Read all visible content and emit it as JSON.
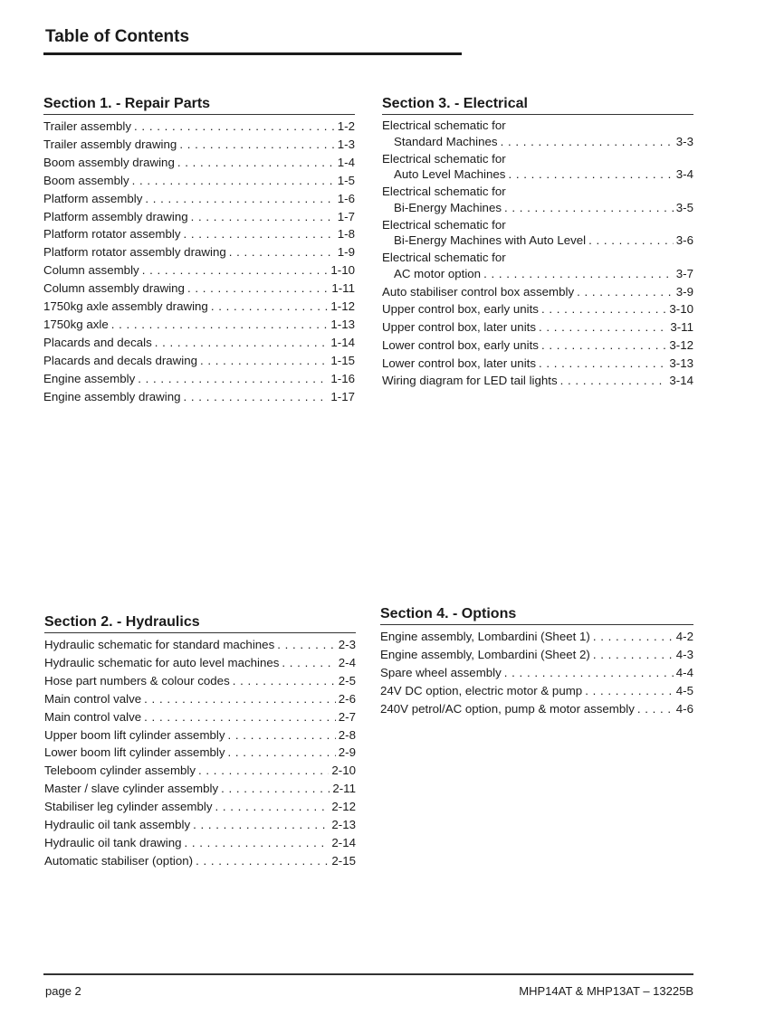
{
  "title": "Table of Contents",
  "sections": {
    "s1": {
      "title": "Section 1. - Repair Parts",
      "entries": [
        {
          "label": "Trailer assembly",
          "page": "1-2"
        },
        {
          "label": "Trailer assembly drawing",
          "page": "1-3"
        },
        {
          "label": "Boom assembly drawing",
          "page": "1-4"
        },
        {
          "label": "Boom assembly",
          "page": "1-5"
        },
        {
          "label": "Platform assembly",
          "page": "1-6"
        },
        {
          "label": "Platform assembly drawing",
          "page": "1-7"
        },
        {
          "label": "Platform rotator assembly",
          "page": "1-8"
        },
        {
          "label": "Platform rotator assembly drawing",
          "page": "1-9"
        },
        {
          "label": "Column assembly",
          "page": "1-10"
        },
        {
          "label": "Column assembly drawing",
          "page": "1-11"
        },
        {
          "label": "1750kg axle assembly drawing",
          "page": "1-12"
        },
        {
          "label": "1750kg axle",
          "page": "1-13"
        },
        {
          "label": "Placards and decals",
          "page": "1-14"
        },
        {
          "label": "Placards and decals drawing",
          "page": "1-15"
        },
        {
          "label": "Engine assembly",
          "page": "1-16"
        },
        {
          "label": "Engine assembly drawing",
          "page": "1-17"
        }
      ]
    },
    "s2": {
      "title": "Section 2. - Hydraulics",
      "entries": [
        {
          "label": "Hydraulic schematic for standard machines",
          "page": "2-3"
        },
        {
          "label": "Hydraulic schematic for auto level machines",
          "page": "2-4"
        },
        {
          "label": "Hose part numbers & colour codes",
          "page": "2-5"
        },
        {
          "label": "Main control valve",
          "page": "2-6"
        },
        {
          "label": "Main control valve",
          "page": "2-7"
        },
        {
          "label": "Upper boom lift cylinder assembly",
          "page": "2-8"
        },
        {
          "label": "Lower boom lift cylinder assembly",
          "page": "2-9"
        },
        {
          "label": "Teleboom cylinder assembly",
          "page": "2-10"
        },
        {
          "label": "Master / slave cylinder assembly",
          "page": "2-11"
        },
        {
          "label": "Stabiliser leg cylinder assembly",
          "page": "2-12"
        },
        {
          "label": "Hydraulic oil tank assembly",
          "page": "2-13"
        },
        {
          "label": "Hydraulic oil tank drawing",
          "page": "2-14"
        },
        {
          "label": "Automatic stabiliser (option)",
          "page": "2-15"
        }
      ]
    },
    "s3": {
      "title": "Section 3. - Electrical",
      "multi": [
        {
          "first": "Electrical schematic for",
          "label": "Standard Machines",
          "page": "3-3"
        },
        {
          "first": "Electrical schematic for",
          "label": "Auto Level Machines",
          "page": "3-4"
        },
        {
          "first": "Electrical schematic for",
          "label": "Bi-Energy Machines",
          "page": "3-5"
        },
        {
          "first": "Electrical schematic for",
          "label": "Bi-Energy Machines with Auto Level",
          "page": "3-6"
        },
        {
          "first": "Electrical schematic for",
          "label": "AC motor option",
          "page": "3-7"
        }
      ],
      "entries": [
        {
          "label": "Auto stabiliser control box assembly",
          "page": "3-9"
        },
        {
          "label": "Upper control box, early units",
          "page": "3-10"
        },
        {
          "label": "Upper control box, later units",
          "page": "3-11"
        },
        {
          "label": "Lower control box, early units",
          "page": "3-12"
        },
        {
          "label": "Lower control box, later units",
          "page": "3-13"
        },
        {
          "label": "Wiring diagram for LED tail lights",
          "page": "3-14"
        }
      ]
    },
    "s4": {
      "title": "Section 4. - Options",
      "entries": [
        {
          "label": "Engine assembly, Lombardini (Sheet 1)",
          "page": "4-2"
        },
        {
          "label": "Engine assembly, Lombardini (Sheet 2)",
          "page": "4-3"
        },
        {
          "label": "Spare wheel assembly",
          "page": "4-4"
        },
        {
          "label": "24V DC option, electric motor & pump",
          "page": "4-5"
        },
        {
          "label": "240V petrol/AC option, pump & motor assembly",
          "page": "4-6"
        }
      ]
    }
  },
  "footer": {
    "page": "page 2",
    "doc": "MHP14AT & MHP13AT – 13225B"
  }
}
